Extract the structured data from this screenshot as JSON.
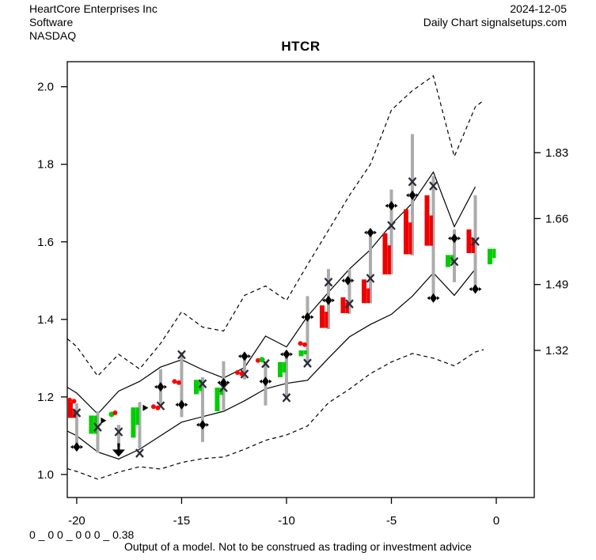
{
  "header": {
    "left_lines": [
      "HeartCore Enterprises Inc",
      "Software",
      "NASDAQ"
    ],
    "right_lines": [
      "2024-12-05",
      "Daily Chart signalsetups.com"
    ]
  },
  "title": "HTCR",
  "footer": {
    "model_output": "0 _ 0 0 _ 0 0 0 _ 0.38",
    "disclaimer": "Output of a model. Not to be construed as trading or investment advice"
  },
  "colors": {
    "up": "#00CC00",
    "down": "#EE0000",
    "range_bar": "#ABABAB",
    "marker_x": "#2B2B3A",
    "marker_black": "#000000",
    "dot_red": "#FF0000",
    "dot_green": "#00CC00",
    "line": "#000000",
    "background": "#FFFFFF",
    "text": "#000000"
  },
  "chart_data": {
    "type": "candlestick",
    "symbol": "HTCR",
    "x_axis": {
      "tick_labels": [
        "-20",
        "-15",
        "-10",
        "-5",
        "0"
      ],
      "tick_values": [
        -20,
        -15,
        -10,
        -5,
        0
      ],
      "range": [
        -20.45,
        1.81
      ]
    },
    "y_axis_left": {
      "tick_labels": [
        "2.0",
        "1.8",
        "1.6",
        "1.4",
        "1.2",
        "1.0"
      ],
      "tick_values": [
        2.0,
        1.8,
        1.6,
        1.4,
        1.2,
        1.0
      ]
    },
    "y_axis_right": {
      "tick_labels": [
        "1.83",
        "1.66",
        "1.49",
        "1.32"
      ],
      "tick_values": [
        1.83,
        1.66,
        1.49,
        1.32
      ]
    },
    "y_range": [
      0.9406,
      2.0646
    ],
    "grid": false,
    "days": [
      {
        "t": -20,
        "dir": "down",
        "open": 1.187,
        "close": 1.146,
        "mid": 1.166,
        "high": 1.183,
        "low": 1.065,
        "markers": [
          [
            "x",
            1.159,
            0
          ],
          [
            "diamond",
            1.071,
            0
          ],
          [
            "dotpair",
            1.192,
            -9
          ]
        ]
      },
      {
        "t": -19,
        "dir": "up",
        "open": 1.105,
        "close": 1.152,
        "mid": 1.105,
        "high": 1.163,
        "low": 1.056,
        "markers": [
          [
            "x",
            1.122,
            0
          ],
          [
            "rarrow",
            1.139,
            4
          ]
        ]
      },
      {
        "t": -18,
        "dir": null,
        "open": null,
        "close": null,
        "mid": null,
        "high": 1.128,
        "low": 1.072,
        "markers": [
          [
            "x",
            1.11,
            0
          ],
          [
            "darrow",
            1.056,
            0
          ],
          [
            "dotg",
            1.155,
            -9
          ],
          [
            "dotr",
            1.159,
            -4.5
          ]
        ]
      },
      {
        "t": -17,
        "dir": "up",
        "open": 1.095,
        "close": 1.173,
        "mid": 1.128,
        "high": 1.187,
        "low": 1.067,
        "markers": [
          [
            "x",
            1.055,
            0
          ],
          [
            "rarrow",
            1.172,
            4
          ]
        ]
      },
      {
        "t": -16,
        "dir": null,
        "open": null,
        "close": null,
        "mid": null,
        "high": 1.271,
        "low": 1.175,
        "markers": [
          [
            "x",
            1.177,
            0
          ],
          [
            "diamond",
            1.226,
            0
          ],
          [
            "dotpair",
            1.175,
            -9
          ]
        ]
      },
      {
        "t": -15,
        "dir": null,
        "open": null,
        "close": null,
        "mid": null,
        "high": 1.316,
        "low": 1.148,
        "markers": [
          [
            "x",
            1.309,
            0
          ],
          [
            "diamond",
            1.18,
            0
          ],
          [
            "dotpair",
            1.24,
            -9
          ]
        ]
      },
      {
        "t": -14,
        "dir": "up",
        "open": 1.207,
        "close": 1.244,
        "mid": 1.215,
        "high": 1.251,
        "low": 1.084,
        "markers": [
          [
            "x",
            1.234,
            0
          ],
          [
            "diamond",
            1.128,
            0
          ]
        ]
      },
      {
        "t": -13,
        "dir": "up",
        "open": 1.163,
        "close": 1.224,
        "mid": 1.205,
        "high": 1.292,
        "low": 1.166,
        "markers": [
          [
            "x",
            1.224,
            0
          ],
          [
            "diamond",
            1.237,
            0
          ]
        ]
      },
      {
        "t": -12,
        "dir": null,
        "open": null,
        "close": null,
        "mid": null,
        "high": 1.305,
        "low": 1.245,
        "markers": [
          [
            "x",
            1.259,
            0
          ],
          [
            "diamond",
            1.305,
            0
          ],
          [
            "dotpair",
            1.263,
            -9
          ]
        ]
      },
      {
        "t": -11,
        "dir": null,
        "open": null,
        "close": null,
        "mid": null,
        "high": 1.292,
        "low": 1.178,
        "markers": [
          [
            "x",
            1.286,
            0
          ],
          [
            "diamond",
            1.24,
            0
          ],
          [
            "dotr",
            1.294,
            -9.5
          ],
          [
            "dotg",
            1.296,
            -4.5
          ]
        ]
      },
      {
        "t": -10,
        "dir": "up",
        "open": 1.251,
        "close": 1.29,
        "mid": 1.263,
        "high": 1.316,
        "low": 1.196,
        "markers": [
          [
            "x",
            1.198,
            0
          ],
          [
            "diamond",
            1.31,
            0
          ]
        ]
      },
      {
        "t": -9,
        "dir": "up",
        "open": 1.305,
        "close": 1.32,
        "mid": 1.31,
        "high": 1.46,
        "low": 1.285,
        "markers": [
          [
            "x",
            1.287,
            0
          ],
          [
            "diamond",
            1.406,
            0
          ],
          [
            "dotpair",
            1.338,
            -9
          ]
        ]
      },
      {
        "t": -8,
        "dir": "down",
        "open": 1.436,
        "close": 1.378,
        "mid": 1.42,
        "high": 1.53,
        "low": 1.375,
        "markers": [
          [
            "x",
            1.496,
            0
          ],
          [
            "diamond",
            1.449,
            0
          ]
        ]
      },
      {
        "t": -7,
        "dir": "down",
        "open": 1.457,
        "close": 1.416,
        "mid": 1.444,
        "high": 1.53,
        "low": 1.414,
        "markers": [
          [
            "x",
            1.44,
            0
          ],
          [
            "diamond",
            1.5,
            -2
          ]
        ]
      },
      {
        "t": -6,
        "dir": "down",
        "open": 1.503,
        "close": 1.442,
        "mid": 1.48,
        "high": 1.627,
        "low": 1.442,
        "markers": [
          [
            "x",
            1.506,
            0
          ],
          [
            "diamond",
            1.624,
            0
          ]
        ]
      },
      {
        "t": -5,
        "dir": "down",
        "open": 1.622,
        "close": 1.516,
        "mid": 1.591,
        "high": 1.735,
        "low": 1.516,
        "markers": [
          [
            "x",
            1.642,
            0
          ],
          [
            "diamond",
            1.693,
            0
          ]
        ]
      },
      {
        "t": -4,
        "dir": "down",
        "open": 1.684,
        "close": 1.568,
        "mid": 1.65,
        "high": 1.878,
        "low": 1.565,
        "markers": [
          [
            "x",
            1.755,
            0
          ],
          [
            "diamond",
            1.72,
            0
          ]
        ]
      },
      {
        "t": -3,
        "dir": "down",
        "open": 1.72,
        "close": 1.59,
        "mid": 1.668,
        "high": 1.77,
        "low": 1.455,
        "markers": [
          [
            "x",
            1.744,
            0
          ],
          [
            "diamond",
            1.455,
            0
          ]
        ]
      },
      {
        "t": -2,
        "dir": "up",
        "open": 1.535,
        "close": 1.566,
        "mid": 1.545,
        "high": 1.632,
        "low": 1.496,
        "markers": [
          [
            "x",
            1.549,
            0
          ],
          [
            "diamond",
            1.609,
            0
          ]
        ]
      },
      {
        "t": -1,
        "dir": "down",
        "open": 1.632,
        "close": 1.571,
        "mid": 1.61,
        "high": 1.72,
        "low": 1.475,
        "markers": [
          [
            "x",
            1.601,
            0
          ],
          [
            "diamond",
            1.478,
            0
          ]
        ]
      },
      {
        "t": 0,
        "dir": "up",
        "open": 1.542,
        "close": 1.582,
        "mid": 1.558,
        "high": null,
        "low": null,
        "markers": []
      }
    ],
    "bands": {
      "upper_dashed": [
        [
          -20.45,
          1.35
        ],
        [
          -20,
          1.33
        ],
        [
          -19,
          1.254
        ],
        [
          -18,
          1.31
        ],
        [
          -17,
          1.272
        ],
        [
          -16,
          1.338
        ],
        [
          -15,
          1.42
        ],
        [
          -14,
          1.38
        ],
        [
          -13,
          1.37
        ],
        [
          -12,
          1.462
        ],
        [
          -11,
          1.486
        ],
        [
          -10,
          1.449
        ],
        [
          -9,
          1.541
        ],
        [
          -8,
          1.63
        ],
        [
          -7,
          1.72
        ],
        [
          -6,
          1.8
        ],
        [
          -5,
          1.94
        ],
        [
          -4,
          1.99
        ],
        [
          -3,
          2.028
        ],
        [
          -2,
          1.82
        ],
        [
          -1,
          1.948
        ],
        [
          -0.6,
          1.965
        ]
      ],
      "upper_solid": [
        [
          -20.45,
          1.225
        ],
        [
          -20,
          1.21
        ],
        [
          -19,
          1.156
        ],
        [
          -18,
          1.215
        ],
        [
          -17,
          1.24
        ],
        [
          -16,
          1.277
        ],
        [
          -15,
          1.296
        ],
        [
          -14,
          1.27
        ],
        [
          -13,
          1.249
        ],
        [
          -12,
          1.276
        ],
        [
          -11,
          1.357
        ],
        [
          -10,
          1.329
        ],
        [
          -9,
          1.408
        ],
        [
          -8,
          1.47
        ],
        [
          -7,
          1.53
        ],
        [
          -6,
          1.58
        ],
        [
          -5,
          1.645
        ],
        [
          -4,
          1.7
        ],
        [
          -3,
          1.78
        ],
        [
          -2,
          1.639
        ],
        [
          -1,
          1.742
        ]
      ],
      "lower_solid": [
        [
          -20.45,
          1.112
        ],
        [
          -20,
          1.1
        ],
        [
          -19,
          1.058
        ],
        [
          -18,
          1.04
        ],
        [
          -17,
          1.065
        ],
        [
          -16,
          1.1
        ],
        [
          -15,
          1.135
        ],
        [
          -14,
          1.149
        ],
        [
          -13,
          1.163
        ],
        [
          -12,
          1.19
        ],
        [
          -11,
          1.221
        ],
        [
          -10,
          1.235
        ],
        [
          -9,
          1.243
        ],
        [
          -8,
          1.3
        ],
        [
          -7,
          1.355
        ],
        [
          -6,
          1.387
        ],
        [
          -5,
          1.413
        ],
        [
          -4,
          1.46
        ],
        [
          -3,
          1.52
        ],
        [
          -2,
          1.462
        ],
        [
          -1,
          1.53
        ]
      ],
      "lower_dashed": [
        [
          -20.45,
          1.015
        ],
        [
          -20,
          1.008
        ],
        [
          -19,
          0.988
        ],
        [
          -18,
          1.006
        ],
        [
          -17,
          1.02
        ],
        [
          -16,
          1.014
        ],
        [
          -15,
          1.031
        ],
        [
          -14,
          1.041
        ],
        [
          -13,
          1.045
        ],
        [
          -12,
          1.065
        ],
        [
          -11,
          1.088
        ],
        [
          -10,
          1.102
        ],
        [
          -9,
          1.125
        ],
        [
          -8,
          1.185
        ],
        [
          -7,
          1.22
        ],
        [
          -6,
          1.26
        ],
        [
          -5,
          1.29
        ],
        [
          -4,
          1.312
        ],
        [
          -3,
          1.3
        ],
        [
          -2,
          1.28
        ],
        [
          -1,
          1.316
        ],
        [
          -0.6,
          1.322
        ]
      ]
    }
  }
}
